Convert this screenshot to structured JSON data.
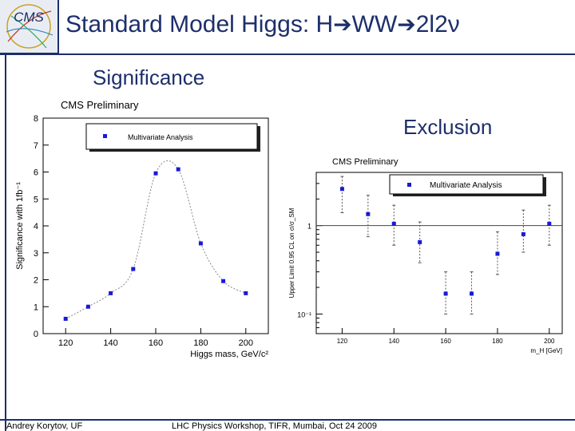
{
  "header": {
    "title_prefix": "Standard Model Higgs: H",
    "title_mid": "WW",
    "title_suffix": "2l2ν",
    "arrow": "➔",
    "logo_text": "CMS"
  },
  "labels": {
    "significance": "Significance",
    "exclusion": "Exclusion"
  },
  "footer": {
    "author": "Andrey Korytov, UF",
    "event": "LHC Physics Workshop, TIFR, Mumbai, Oct 24 2009"
  },
  "colors": {
    "navy": "#1d2f6b",
    "marker": "#1a1ad6"
  },
  "chart_data": [
    {
      "type": "scatter",
      "title": "CMS Preliminary",
      "xlabel": "Higgs mass, GeV/c²",
      "ylabel": "Significance with 1fb⁻¹",
      "legend": "Multivariate Analysis",
      "legend_position": "top-left",
      "xlim": [
        110,
        210
      ],
      "ylim": [
        0,
        8
      ],
      "xticks": [
        120,
        140,
        160,
        180,
        200
      ],
      "yticks": [
        0,
        1,
        2,
        3,
        4,
        5,
        6,
        7,
        8
      ],
      "x": [
        120,
        130,
        140,
        150,
        160,
        170,
        180,
        190,
        200
      ],
      "y": [
        0.55,
        1.0,
        1.5,
        2.4,
        5.95,
        6.1,
        3.35,
        1.95,
        1.5
      ],
      "fit_curve": true
    },
    {
      "type": "scatter",
      "title": "CMS Preliminary",
      "xlabel": "m_H [GeV]",
      "ylabel": "Upper Limit 0.95 CL on σ/σ_SM",
      "legend": "Multivariate Analysis",
      "legend_position": "top-right",
      "log_y": true,
      "xlim": [
        110,
        205
      ],
      "ylim": [
        0.06,
        4
      ],
      "xticks": [
        120,
        140,
        160,
        180,
        200
      ],
      "ytick_labels": [
        "10⁻¹",
        "1"
      ],
      "ytick_values": [
        0.1,
        1
      ],
      "reference_line": 1,
      "x": [
        120,
        130,
        140,
        150,
        160,
        170,
        180,
        190,
        200
      ],
      "y": [
        2.6,
        1.35,
        1.05,
        0.65,
        0.17,
        0.17,
        0.48,
        0.8,
        1.05
      ],
      "y_low": [
        1.4,
        0.75,
        0.6,
        0.38,
        0.1,
        0.1,
        0.28,
        0.5,
        0.6
      ],
      "y_high": [
        3.6,
        2.2,
        1.7,
        1.1,
        0.3,
        0.3,
        0.85,
        1.5,
        1.7
      ]
    }
  ]
}
